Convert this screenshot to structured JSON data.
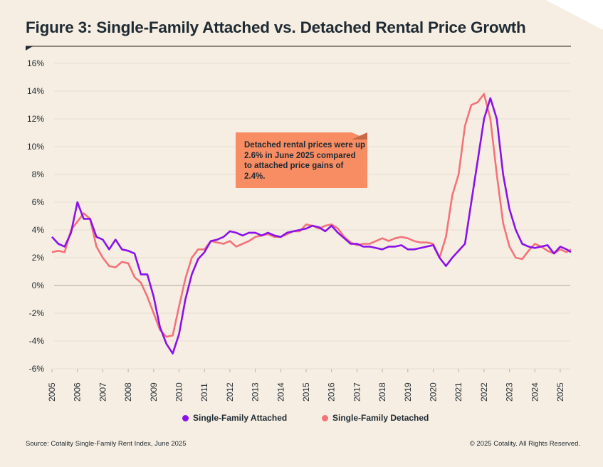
{
  "title": "Figure 3: Single-Family Attached vs. Detached Rental Price Growth",
  "annotation": "Detached rental prices were up 2.6% in June 2025 compared to attached price gains of 2.4%.",
  "source": "Source: Cotality Single-Family Rent Index, June 2025",
  "copyright": "© 2025 Cotality. All Rights Reserved.",
  "colors": {
    "attached": "#8a11ea",
    "detached": "#f4737a",
    "background": "#f6eee2",
    "annotation": "#f88c62"
  },
  "chart_data": {
    "type": "line",
    "title": "Figure 3: Single-Family Attached vs. Detached Rental Price Growth",
    "xlabel": "",
    "ylabel": "",
    "xlim": [
      2005,
      2025.5
    ],
    "ylim": [
      -6,
      16
    ],
    "grid": true,
    "legend": "bottom",
    "y_ticks": [
      "-6%",
      "-4%",
      "-2%",
      "0%",
      "2%",
      "4%",
      "6%",
      "8%",
      "10%",
      "12%",
      "14%",
      "16%"
    ],
    "y_tick_values": [
      -6,
      -4,
      -2,
      0,
      2,
      4,
      6,
      8,
      10,
      12,
      14,
      16
    ],
    "x_ticks": [
      "2005",
      "2006",
      "2007",
      "2008",
      "2009",
      "2010",
      "2011",
      "2012",
      "2013",
      "2014",
      "2015",
      "2016",
      "2017",
      "2018",
      "2019",
      "2020",
      "2021",
      "2022",
      "2023",
      "2024",
      "2025"
    ],
    "x": [
      2005,
      2005.25,
      2005.5,
      2005.75,
      2006,
      2006.25,
      2006.5,
      2006.75,
      2007,
      2007.25,
      2007.5,
      2007.75,
      2008,
      2008.25,
      2008.5,
      2008.75,
      2009,
      2009.25,
      2009.5,
      2009.75,
      2010,
      2010.25,
      2010.5,
      2010.75,
      2011,
      2011.25,
      2011.5,
      2011.75,
      2012,
      2012.25,
      2012.5,
      2012.75,
      2013,
      2013.25,
      2013.5,
      2013.75,
      2014,
      2014.25,
      2014.5,
      2014.75,
      2015,
      2015.25,
      2015.5,
      2015.75,
      2016,
      2016.25,
      2016.5,
      2016.75,
      2017,
      2017.25,
      2017.5,
      2017.75,
      2018,
      2018.25,
      2018.5,
      2018.75,
      2019,
      2019.25,
      2019.5,
      2019.75,
      2020,
      2020.25,
      2020.5,
      2020.75,
      2021,
      2021.25,
      2021.5,
      2021.75,
      2022,
      2022.25,
      2022.5,
      2022.75,
      2023,
      2023.25,
      2023.5,
      2023.75,
      2024,
      2024.25,
      2024.5,
      2024.75,
      2025,
      2025.25,
      2025.42
    ],
    "series": [
      {
        "name": "Single-Family Attached",
        "values": [
          3.5,
          3.0,
          2.8,
          3.8,
          6.0,
          4.8,
          4.8,
          3.5,
          3.3,
          2.6,
          3.3,
          2.6,
          2.5,
          2.3,
          0.8,
          0.8,
          -0.8,
          -3.0,
          -4.2,
          -4.9,
          -3.5,
          -1.0,
          0.8,
          1.9,
          2.4,
          3.2,
          3.3,
          3.5,
          3.9,
          3.8,
          3.6,
          3.8,
          3.8,
          3.6,
          3.8,
          3.6,
          3.5,
          3.8,
          3.9,
          4.0,
          4.1,
          4.3,
          4.2,
          3.9,
          4.3,
          3.8,
          3.4,
          3.0,
          3.0,
          2.8,
          2.8,
          2.7,
          2.6,
          2.8,
          2.8,
          2.9,
          2.6,
          2.6,
          2.7,
          2.8,
          2.9,
          2.0,
          1.4,
          2.0,
          2.5,
          3.0,
          6.0,
          9.0,
          12.0,
          13.5,
          12.0,
          8.0,
          5.5,
          4.0,
          3.0,
          2.8,
          2.7,
          2.8,
          2.9,
          2.3,
          2.8,
          2.6,
          2.4
        ]
      },
      {
        "name": "Single-Family Detached",
        "values": [
          2.4,
          2.5,
          2.4,
          4.0,
          4.6,
          5.2,
          4.8,
          2.8,
          2.0,
          1.4,
          1.3,
          1.7,
          1.6,
          0.6,
          0.2,
          -0.8,
          -2.0,
          -3.2,
          -3.7,
          -3.6,
          -1.5,
          0.5,
          2.0,
          2.6,
          2.6,
          3.2,
          3.1,
          3.0,
          3.2,
          2.8,
          3.0,
          3.2,
          3.5,
          3.6,
          3.7,
          3.5,
          3.5,
          3.7,
          3.9,
          3.9,
          4.4,
          4.3,
          4.1,
          4.3,
          4.4,
          4.1,
          3.5,
          3.1,
          2.9,
          3.0,
          3.0,
          3.2,
          3.4,
          3.2,
          3.4,
          3.5,
          3.4,
          3.2,
          3.1,
          3.1,
          3.0,
          2.0,
          3.5,
          6.5,
          8.0,
          11.5,
          13.0,
          13.2,
          13.8,
          12.0,
          8.0,
          4.5,
          2.8,
          2.0,
          1.9,
          2.5,
          3.0,
          2.8,
          2.5,
          2.3,
          2.6,
          2.4,
          2.6
        ]
      }
    ]
  }
}
